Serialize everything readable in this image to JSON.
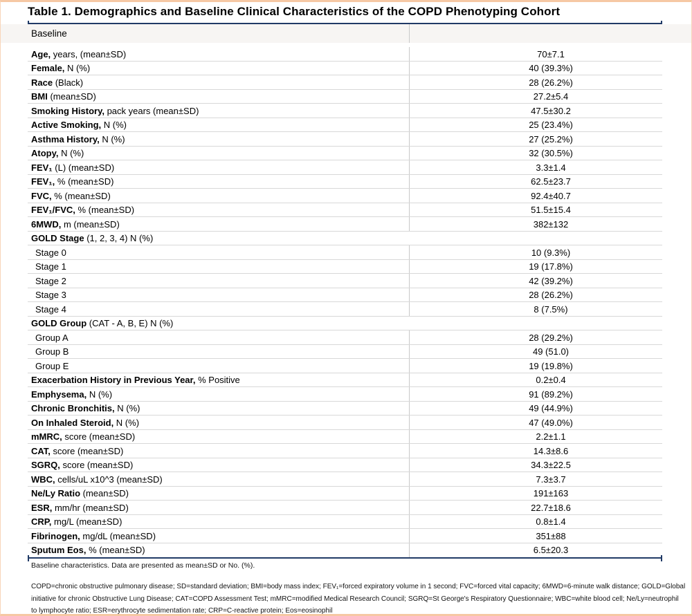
{
  "title": "Table 1. Demographics and Baseline Clinical Characteristics of the COPD Phenotyping Cohort",
  "header": {
    "label": "Baseline",
    "value": ""
  },
  "table": {
    "rows": [
      {
        "kind": "data",
        "bold": "Age,",
        "rest": " years, (mean±SD)",
        "value": "70±7.1"
      },
      {
        "kind": "data",
        "bold": "Female,",
        "rest": " N (%)",
        "value": "40 (39.3%)"
      },
      {
        "kind": "data",
        "bold": "Race",
        "rest": " (Black)",
        "value": "28 (26.2%)"
      },
      {
        "kind": "data",
        "bold": "BMI",
        "rest": " (mean±SD)",
        "value": "27.2±5.4"
      },
      {
        "kind": "data",
        "bold": "Smoking History,",
        "rest": " pack years (mean±SD)",
        "value": "47.5±30.2"
      },
      {
        "kind": "data",
        "bold": "Active Smoking,",
        "rest": " N (%)",
        "value": "25 (23.4%)"
      },
      {
        "kind": "data",
        "bold": "Asthma History,",
        "rest": " N (%)",
        "value": "27 (25.2%)"
      },
      {
        "kind": "data",
        "bold": "Atopy,",
        "rest": " N (%)",
        "value": "32 (30.5%)"
      },
      {
        "kind": "data",
        "bold": "FEV₁",
        "rest": " (L) (mean±SD)",
        "value": "3.3±1.4"
      },
      {
        "kind": "data",
        "bold": "FEV₁,",
        "rest": " % (mean±SD)",
        "value": "62.5±23.7"
      },
      {
        "kind": "data",
        "bold": "FVC,",
        "rest": " % (mean±SD)",
        "value": "92.4±40.7"
      },
      {
        "kind": "data",
        "bold": "FEV₁/FVC,",
        "rest": " % (mean±SD)",
        "value": "51.5±15.4"
      },
      {
        "kind": "data",
        "bold": "6MWD,",
        "rest": " m (mean±SD)",
        "value": "382±132"
      },
      {
        "kind": "section",
        "bold": "GOLD Stage",
        "rest": " (1, 2, 3, 4) N (%)",
        "value": ""
      },
      {
        "kind": "sub",
        "bold": "",
        "rest": "Stage 0",
        "value": "10 (9.3%)"
      },
      {
        "kind": "sub",
        "bold": "",
        "rest": "Stage 1",
        "value": "19 (17.8%)"
      },
      {
        "kind": "sub",
        "bold": "",
        "rest": "Stage 2",
        "value": "42 (39.2%)"
      },
      {
        "kind": "sub",
        "bold": "",
        "rest": "Stage 3",
        "value": "28 (26.2%)"
      },
      {
        "kind": "sub",
        "bold": "",
        "rest": "Stage 4",
        "value": "8 (7.5%)"
      },
      {
        "kind": "section",
        "bold": "GOLD Group",
        "rest": " (CAT - A, B, E) N (%)",
        "value": ""
      },
      {
        "kind": "sub",
        "bold": "",
        "rest": "Group A",
        "value": "28 (29.2%)"
      },
      {
        "kind": "sub",
        "bold": "",
        "rest": "Group B",
        "value": "49 (51.0)"
      },
      {
        "kind": "sub",
        "bold": "",
        "rest": "Group E",
        "value": "19 (19.8%)"
      },
      {
        "kind": "data",
        "bold": "Exacerbation History in Previous Year,",
        "rest": " % Positive",
        "value": "0.2±0.4"
      },
      {
        "kind": "data",
        "bold": "Emphysema,",
        "rest": " N (%)",
        "value": "91 (89.2%)"
      },
      {
        "kind": "data",
        "bold": "Chronic Bronchitis,",
        "rest": " N (%)",
        "value": "49 (44.9%)"
      },
      {
        "kind": "data",
        "bold": "On Inhaled Steroid,",
        "rest": " N (%)",
        "value": "47 (49.0%)"
      },
      {
        "kind": "data",
        "bold": "mMRC,",
        "rest": " score (mean±SD)",
        "value": "2.2±1.1"
      },
      {
        "kind": "data",
        "bold": "CAT,",
        "rest": " score (mean±SD)",
        "value": "14.3±8.6"
      },
      {
        "kind": "data",
        "bold": "SGRQ,",
        "rest": " score (mean±SD)",
        "value": "34.3±22.5"
      },
      {
        "kind": "data",
        "bold": "WBC,",
        "rest": " cells/uL x10^3 (mean±SD)",
        "value": "7.3±3.7"
      },
      {
        "kind": "data",
        "bold": "Ne/Ly Ratio",
        "rest": " (mean±SD)",
        "value": "191±163"
      },
      {
        "kind": "data",
        "bold": "ESR,",
        "rest": " mm/hr (mean±SD)",
        "value": "22.7±18.6"
      },
      {
        "kind": "data",
        "bold": "CRP,",
        "rest": " mg/L (mean±SD)",
        "value": "0.8±1.4"
      },
      {
        "kind": "data",
        "bold": "Fibrinogen,",
        "rest": " mg/dL (mean±SD)",
        "value": "351±88"
      },
      {
        "kind": "data",
        "bold": "Sputum Eos,",
        "rest": " % (mean±SD)",
        "value": "6.5±20.3"
      }
    ]
  },
  "footnotes": {
    "caption": "Baseline characteristics. Data are presented as mean±SD or No. (%).",
    "abbrev_lines": [
      "COPD=chronic obstructive pulmonary disease; SD=standard deviation; BMI=body mass index; FEV₁=forced expiratory volume in 1 second; FVC=forced vital capacity; 6MWD=6-minute walk distance; GOLD=Global",
      "initiative for chronic Obstructive Lung Disease; CAT=COPD Assessment Test; mMRC=modified Medical Research Council; SGRQ=St George's Respiratory Questionnaire; WBC=white blood cell; Ne/Ly=neutrophil",
      "to lymphocyte ratio; ESR=erythrocyte sedimentation rate; CRP=C-reactive protein; Eos=eosinophil"
    ]
  },
  "colors": {
    "accent_navy": "#203a66",
    "frame_peach": "#f6c8a4",
    "header_band_bg": "#f7f5f3",
    "row_separator": "#d8d8d8",
    "column_divider": "#c9c9c9"
  }
}
